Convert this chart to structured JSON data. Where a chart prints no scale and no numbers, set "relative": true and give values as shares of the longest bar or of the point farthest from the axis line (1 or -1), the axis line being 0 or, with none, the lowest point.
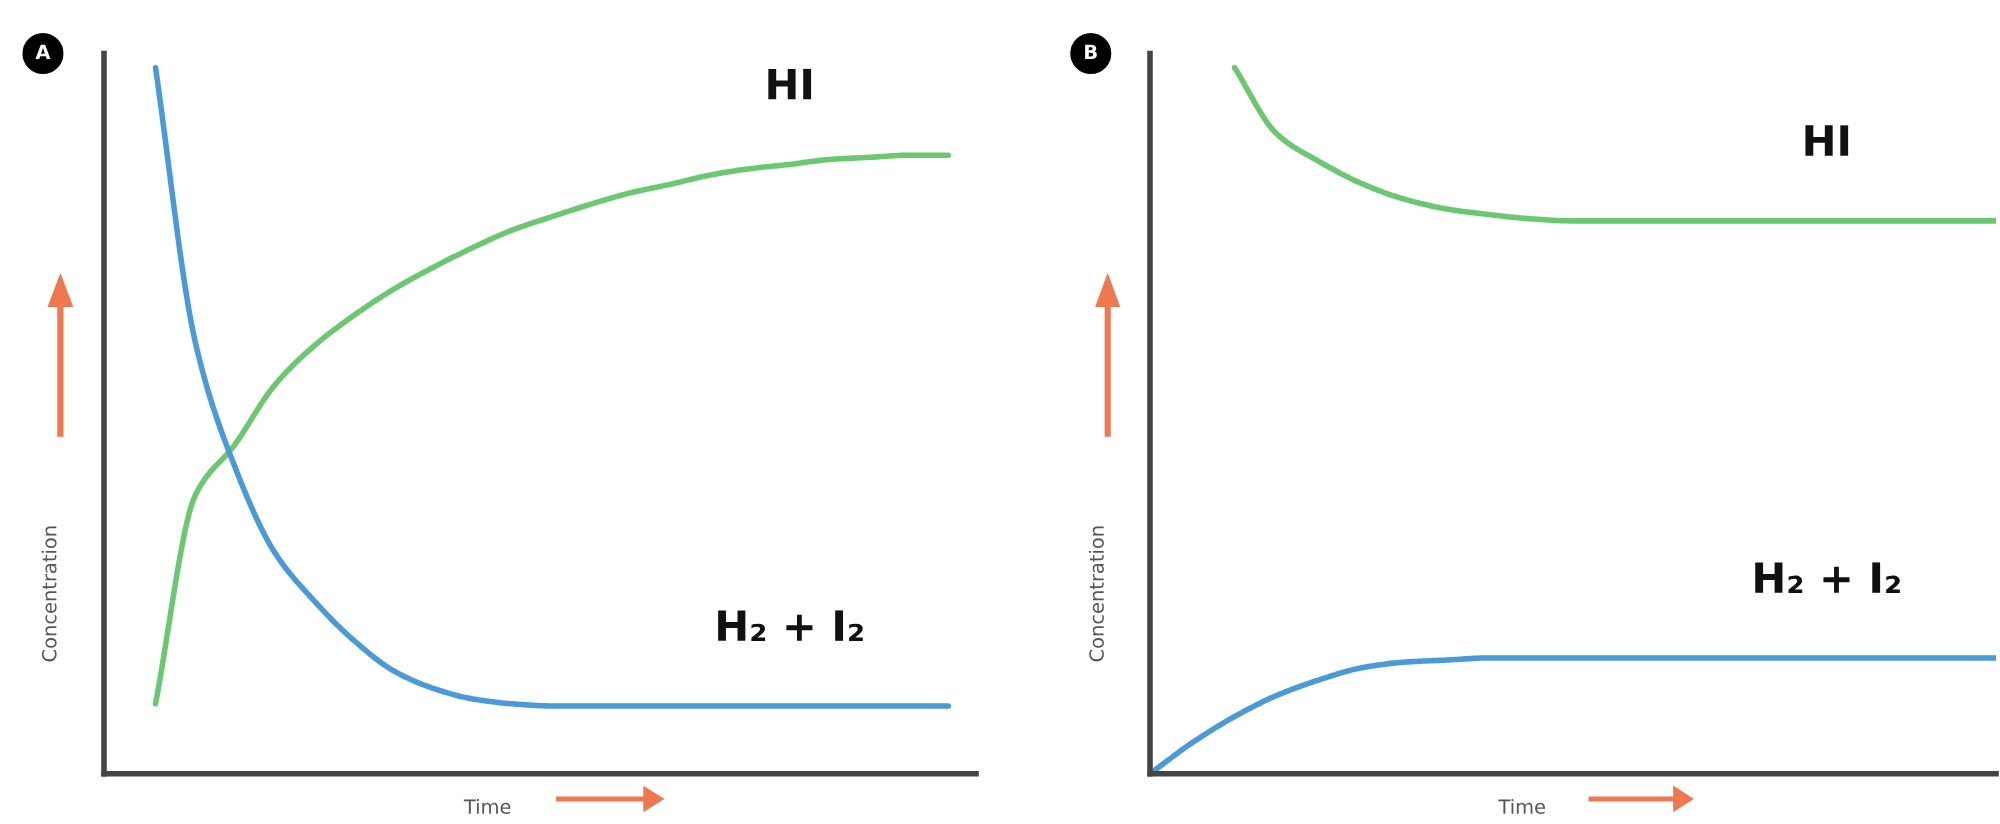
{
  "chart_data": [
    {
      "type": "line",
      "title": "A",
      "xlabel": "Time",
      "ylabel": "Concentration",
      "relative": true,
      "categories": [
        null,
        null,
        null,
        null,
        null,
        null,
        null,
        null,
        null,
        null,
        null,
        null,
        null,
        null,
        null,
        null,
        null,
        null,
        null,
        null,
        null
      ],
      "series": [
        {
          "name": "HI",
          "color": "#6cc870",
          "values": [
            0.099,
            0.394,
            0.466,
            0.55,
            0.606,
            0.649,
            0.686,
            0.717,
            0.745,
            0.77,
            0.789,
            0.807,
            0.823,
            0.835,
            0.848,
            0.857,
            0.863,
            0.87,
            0.873,
            0.876,
            0.876
          ]
        },
        {
          "name": "H₂ + I₂",
          "color": "#4a9ad8",
          "values": [
            1.0,
            0.612,
            0.435,
            0.314,
            0.245,
            0.189,
            0.146,
            0.121,
            0.106,
            0.099,
            0.096,
            0.096,
            0.096,
            0.096,
            0.096,
            0.096,
            0.096,
            0.096,
            0.096,
            0.096,
            0.096
          ]
        }
      ]
    },
    {
      "type": "line",
      "title": "B",
      "xlabel": "Time",
      "ylabel": "Concentration",
      "relative": true,
      "categories": [
        null,
        null,
        null,
        null,
        null,
        null,
        null,
        null,
        null,
        null,
        null,
        null,
        null,
        null,
        null,
        null,
        null,
        null,
        null,
        null,
        null
      ],
      "series": [
        {
          "name": "HI",
          "color": "#6cc870",
          "values": [
            null,
            null,
            1.0,
            0.906,
            0.867,
            0.836,
            0.814,
            0.8,
            0.792,
            0.786,
            0.783,
            0.783,
            0.783,
            0.783,
            0.783,
            0.783,
            0.783,
            0.783,
            0.783,
            0.783,
            0.783
          ]
        },
        {
          "name": "H₂ + I₂",
          "color": "#4a9ad8",
          "values": [
            0.0,
            0.044,
            0.081,
            0.111,
            0.133,
            0.15,
            0.158,
            0.161,
            0.164,
            0.164,
            0.164,
            0.164,
            0.164,
            0.164,
            0.164,
            0.164,
            0.164,
            0.164,
            0.164,
            0.164,
            0.164
          ]
        }
      ]
    }
  ]
}
